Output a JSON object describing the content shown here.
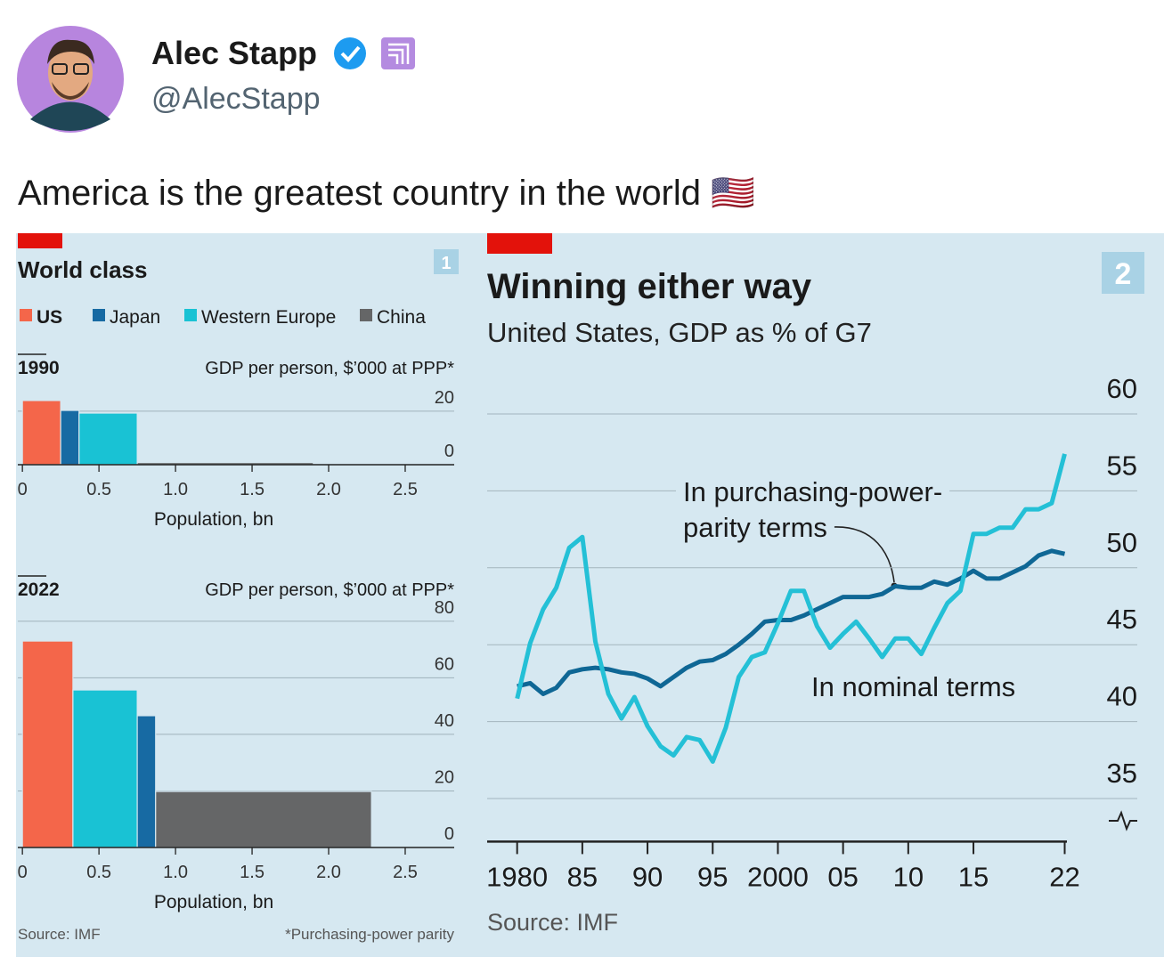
{
  "tweet": {
    "name": "Alec Stapp",
    "handle": "@AlecStapp",
    "text": "America is the greatest country in the world 🇺🇸"
  },
  "chart_data": [
    {
      "type": "marimekko",
      "title": "World class",
      "badge": "1",
      "panels": [
        {
          "label": "1990",
          "ylabel": "GDP per person, $’000 at PPP*",
          "xlabel": "Population, bn",
          "xlim": [
            -0.03,
            2.82
          ],
          "xticks": [
            0,
            0.5,
            {
              "value": 1,
              "label": "1.0"
            },
            1.5,
            {
              "value": 2,
              "label": "2.0"
            },
            2.5
          ],
          "ylim": [
            0,
            27.3
          ],
          "yticks": [
            0,
            20
          ],
          "series": [
            {
              "name": "US",
              "color": "#f4664a",
              "population": 0.25,
              "value": 24
            },
            {
              "name": "Japan",
              "color": "#176aa3",
              "population": 0.12,
              "value": 20.3
            },
            {
              "name": "Western Europe",
              "color": "#19c2d4",
              "population": 0.38,
              "value": 19.3
            },
            {
              "name": "China",
              "color": "#656667",
              "population": 1.15,
              "value": 0.8
            }
          ]
        },
        {
          "label": "2022",
          "ylabel": "GDP per person, $’000 at PPP*",
          "xlabel": "Population, bn",
          "xlim": [
            -0.03,
            2.82
          ],
          "xticks": [
            0,
            0.5,
            {
              "value": 1,
              "label": "1.0"
            },
            1.5,
            {
              "value": 2,
              "label": "2.0"
            },
            2.5
          ],
          "ylim": [
            0,
            83.1
          ],
          "yticks": [
            0,
            20,
            40,
            60,
            80
          ],
          "series": [
            {
              "name": "US",
              "color": "#f4664a",
              "population": 0.33,
              "value": 73
            },
            {
              "name": "Western Europe",
              "color": "#19c2d4",
              "population": 0.42,
              "value": 55.7
            },
            {
              "name": "Japan",
              "color": "#176aa3",
              "population": 0.12,
              "value": 46.6
            },
            {
              "name": "China",
              "color": "#656667",
              "population": 1.41,
              "value": 19.8
            }
          ]
        }
      ],
      "source": "Source: IMF",
      "footnote": "*Purchasing-power parity"
    },
    {
      "type": "line",
      "title": "Winning either way",
      "subtitle": "United States, GDP as % of G7",
      "badge": "2",
      "x": [
        1980,
        1981,
        1982,
        1983,
        1984,
        1985,
        1986,
        1987,
        1988,
        1989,
        1990,
        1991,
        1992,
        1993,
        1994,
        1995,
        1996,
        1997,
        1998,
        1999,
        2000,
        2001,
        2002,
        2003,
        2004,
        2005,
        2006,
        2007,
        2008,
        2009,
        2010,
        2011,
        2012,
        2013,
        2014,
        2015,
        2016,
        2017,
        2018,
        2019,
        2020,
        2021,
        2022
      ],
      "xlim": [
        1977.7,
        2022.17
      ],
      "xticks": [
        1980,
        {
          "value": 1985,
          "label": "85"
        },
        {
          "value": 1990,
          "label": "90"
        },
        {
          "value": 1995,
          "label": "95"
        },
        2000,
        {
          "value": 2005,
          "label": "05"
        },
        {
          "value": 2010,
          "label": "10"
        },
        {
          "value": 2015,
          "label": "15"
        },
        {
          "value": 2022,
          "label": "22"
        }
      ],
      "ylim": [
        32.2,
        62
      ],
      "yticks": [
        35,
        40,
        45,
        50,
        55,
        60
      ],
      "series": [
        {
          "name": "In purchasing-power-parity terms",
          "color": "#0f6795",
          "values": [
            42.3,
            42.5,
            41.8,
            42.2,
            43.2,
            43.4,
            43.5,
            43.4,
            43.2,
            43.1,
            42.8,
            42.3,
            42.9,
            43.5,
            43.9,
            44.0,
            44.4,
            45.0,
            45.7,
            46.5,
            46.6,
            46.6,
            46.9,
            47.3,
            47.7,
            48.1,
            48.1,
            48.1,
            48.3,
            48.8,
            48.7,
            48.7,
            49.1,
            48.9,
            49.3,
            49.8,
            49.3,
            49.3,
            49.7,
            50.1,
            50.8,
            51.1,
            50.9
          ]
        },
        {
          "name": "In nominal terms",
          "color": "#24c0d6",
          "values": [
            41.5,
            45.1,
            47.3,
            48.7,
            51.3,
            52.0,
            45.2,
            41.8,
            40.2,
            41.6,
            39.7,
            38.4,
            37.8,
            39.0,
            38.8,
            37.4,
            39.6,
            42.9,
            44.2,
            44.5,
            46.4,
            48.5,
            48.5,
            46.2,
            44.8,
            45.7,
            46.5,
            45.4,
            44.2,
            45.4,
            45.4,
            44.4,
            46.1,
            47.7,
            48.5,
            52.2,
            52.2,
            52.6,
            52.6,
            53.8,
            53.8,
            54.2,
            57.4
          ]
        }
      ],
      "annotations": [
        [
          "In purchasing-power-",
          "parity terms"
        ],
        [
          "In nominal terms"
        ]
      ],
      "source": "Source: IMF"
    }
  ]
}
